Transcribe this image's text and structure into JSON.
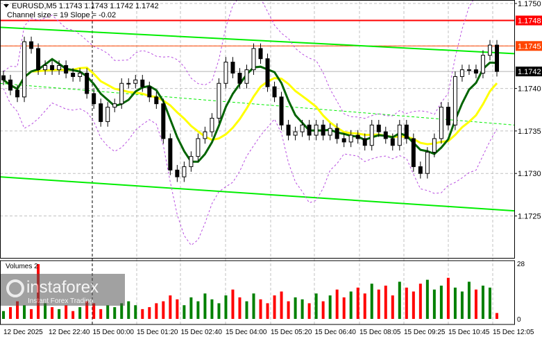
{
  "header": {
    "symbol_line": "EURUSD,M5  1.1743 1.1743 1.1742 1.1742",
    "indicator_line": "Channel size = 19 Slope = -0.02"
  },
  "volume_pane": {
    "label": "Volumes 2",
    "max_label": "28",
    "min_label": "0"
  },
  "watermark": {
    "brand": "instaforex",
    "tagline": "Instant Forex Trading"
  },
  "colors": {
    "bull_volume": "#008000",
    "bear_volume": "#ff0000",
    "fast_ma": "#006400",
    "slow_ma": "#ffff00",
    "channel": "#00ee00",
    "envelope": "#b84ee0",
    "resistance": "#ff0000",
    "level_1745": "#ff4500",
    "current": "#000000"
  },
  "chart_data": {
    "type": "candlestick",
    "title": "EURUSD,M5",
    "ylim": [
      1.17195,
      1.17505
    ],
    "y_ticks": [
      "1.1750",
      "1.1740",
      "1.1735",
      "1.1730",
      "1.1725"
    ],
    "x_tick_labels": [
      "12 Dec 2025",
      "12 Dec 22:40",
      "15 Dec 00:00",
      "15 Dec 01:20",
      "15 Dec 02:40",
      "15 Dec 04:00",
      "15 Dec 05:20",
      "15 Dec 06:40",
      "15 Dec 08:05",
      "15 Dec 09:25",
      "15 Dec 10:45",
      "15 Dec 12:05"
    ],
    "close": [
      1.1741,
      1.17398,
      1.1739,
      1.17455,
      1.17447,
      1.17422,
      1.17427,
      1.17422,
      1.17427,
      1.17418,
      1.17414,
      1.17418,
      1.17394,
      1.17382,
      1.17361,
      1.17378,
      1.17382,
      1.17406,
      1.17406,
      1.1741,
      1.17402,
      1.1739,
      1.17382,
      1.17341,
      1.17304,
      1.17296,
      1.17308,
      1.1732,
      1.17341,
      1.17349,
      1.17365,
      1.17406,
      1.17431,
      1.17418,
      1.17406,
      1.17422,
      1.17447,
      1.17435,
      1.17402,
      1.1739,
      1.17357,
      1.17345,
      1.17349,
      1.17357,
      1.17345,
      1.17357,
      1.17345,
      1.17353,
      1.17341,
      1.17337,
      1.17345,
      1.17341,
      1.17333,
      1.17357,
      1.17349,
      1.17341,
      1.17333,
      1.17357,
      1.17341,
      1.17308,
      1.173,
      1.17325,
      1.17341,
      1.17378,
      1.17357,
      1.17414,
      1.17422,
      1.17422,
      1.17418,
      1.17439,
      1.17451,
      1.1742
    ],
    "volume": [
      4,
      6,
      9,
      7,
      5,
      28,
      8,
      6,
      5,
      7,
      4,
      6,
      9,
      8,
      5,
      7,
      6,
      8,
      9,
      7,
      5,
      6,
      8,
      9,
      12,
      10,
      7,
      11,
      9,
      13,
      10,
      8,
      12,
      15,
      11,
      9,
      13,
      10,
      8,
      12,
      14,
      9,
      11,
      10,
      8,
      13,
      9,
      12,
      15,
      11,
      14,
      16,
      13,
      18,
      15,
      17,
      12,
      19,
      16,
      14,
      18,
      20,
      15,
      17,
      21,
      16,
      14,
      19,
      15,
      17,
      16,
      3
    ],
    "horizontal_levels": [
      {
        "price": 1.1748,
        "label": "1.1748",
        "color": "#ff0000"
      },
      {
        "price": 1.1745,
        "label": "1.1745",
        "color": "#ff4500"
      },
      {
        "price": 1.1742,
        "label": "1.1742",
        "color": "#000000"
      }
    ],
    "channel": {
      "upper": [
        1.17472,
        1.17441
      ],
      "lower": [
        1.17296,
        1.17256
      ]
    },
    "dashed_trend": [
      1.17406,
      1.17357
    ],
    "volume_ylim": [
      0,
      28
    ]
  }
}
